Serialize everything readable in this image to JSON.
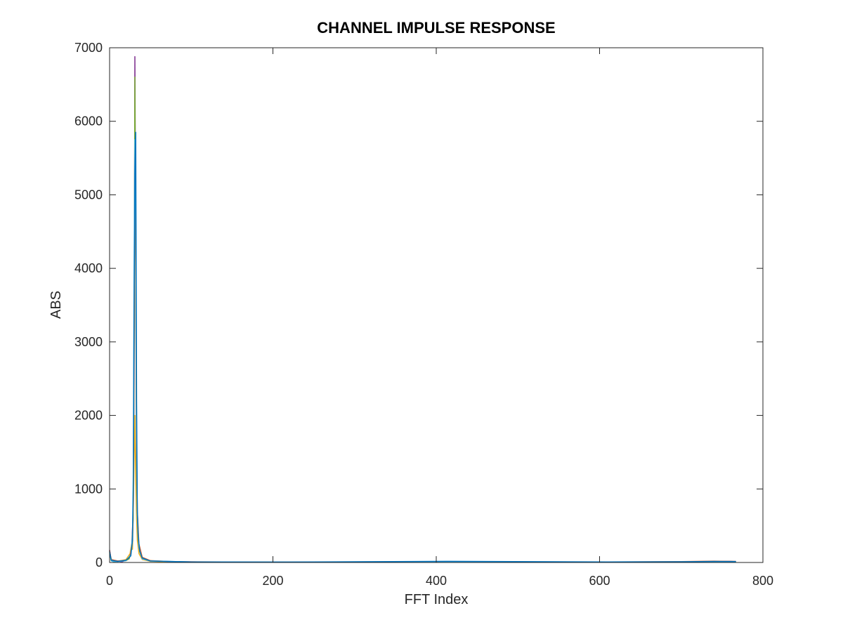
{
  "chart_data": {
    "type": "line",
    "title": "CHANNEL IMPULSE RESPONSE",
    "xlabel": "FFT Index",
    "ylabel": "ABS",
    "xlim": [
      0,
      800
    ],
    "ylim": [
      0,
      7000
    ],
    "xticks": [
      "0",
      "200",
      "400",
      "600",
      "800"
    ],
    "yticks": [
      "0",
      "1000",
      "2000",
      "3000",
      "4000",
      "5000",
      "6000",
      "7000"
    ],
    "grid": false,
    "legend": "none",
    "series": [
      {
        "color": "#7E2F8E",
        "points": [
          [
            0,
            170
          ],
          [
            2,
            30
          ],
          [
            5,
            10
          ],
          [
            10,
            20
          ],
          [
            15,
            10
          ],
          [
            20,
            30
          ],
          [
            24,
            60
          ],
          [
            27,
            200
          ],
          [
            29,
            700
          ],
          [
            30,
            2500
          ],
          [
            31,
            6880
          ],
          [
            32,
            4200
          ],
          [
            33,
            1300
          ],
          [
            34,
            500
          ],
          [
            36,
            200
          ],
          [
            40,
            60
          ],
          [
            50,
            20
          ],
          [
            60,
            15
          ],
          [
            80,
            10
          ],
          [
            120,
            6
          ],
          [
            200,
            4
          ],
          [
            300,
            3
          ],
          [
            416,
            8
          ],
          [
            500,
            3
          ],
          [
            610,
            5
          ],
          [
            700,
            8
          ],
          [
            740,
            12
          ],
          [
            760,
            15
          ],
          [
            767,
            10
          ]
        ]
      },
      {
        "color": "#77AC30",
        "points": [
          [
            0,
            140
          ],
          [
            2,
            25
          ],
          [
            5,
            12
          ],
          [
            10,
            15
          ],
          [
            20,
            25
          ],
          [
            24,
            50
          ],
          [
            27,
            180
          ],
          [
            29,
            600
          ],
          [
            30,
            2800
          ],
          [
            31,
            6600
          ],
          [
            32,
            3900
          ],
          [
            33,
            1200
          ],
          [
            34,
            450
          ],
          [
            36,
            180
          ],
          [
            40,
            50
          ],
          [
            50,
            18
          ],
          [
            80,
            8
          ],
          [
            200,
            4
          ],
          [
            300,
            2
          ],
          [
            416,
            6
          ],
          [
            600,
            4
          ],
          [
            700,
            7
          ],
          [
            767,
            9
          ]
        ]
      },
      {
        "color": "#EDB120",
        "points": [
          [
            0,
            120
          ],
          [
            3,
            20
          ],
          [
            10,
            15
          ],
          [
            20,
            40
          ],
          [
            25,
            120
          ],
          [
            27,
            250
          ],
          [
            28,
            180
          ],
          [
            29,
            700
          ],
          [
            30,
            1400
          ],
          [
            31,
            2000
          ],
          [
            32,
            1100
          ],
          [
            33,
            600
          ],
          [
            34,
            300
          ],
          [
            36,
            120
          ],
          [
            40,
            40
          ],
          [
            50,
            15
          ],
          [
            100,
            6
          ],
          [
            200,
            3
          ],
          [
            416,
            5
          ],
          [
            600,
            3
          ],
          [
            700,
            6
          ],
          [
            767,
            8
          ]
        ]
      },
      {
        "color": "#D95319",
        "points": [
          [
            0,
            160
          ],
          [
            2,
            40
          ],
          [
            10,
            20
          ],
          [
            20,
            30
          ],
          [
            25,
            80
          ],
          [
            28,
            300
          ],
          [
            29,
            900
          ],
          [
            30,
            3000
          ],
          [
            31,
            5500
          ],
          [
            32,
            4500
          ],
          [
            33,
            1500
          ],
          [
            34,
            700
          ],
          [
            36,
            250
          ],
          [
            40,
            70
          ],
          [
            50,
            25
          ],
          [
            80,
            10
          ],
          [
            200,
            5
          ],
          [
            416,
            10
          ],
          [
            600,
            5
          ],
          [
            700,
            12
          ],
          [
            740,
            18
          ],
          [
            767,
            14
          ]
        ]
      },
      {
        "color": "#4DBEEE",
        "points": [
          [
            0,
            100
          ],
          [
            3,
            15
          ],
          [
            10,
            12
          ],
          [
            20,
            25
          ],
          [
            26,
            100
          ],
          [
            28,
            350
          ],
          [
            29,
            1200
          ],
          [
            30,
            4000
          ],
          [
            31,
            5750
          ],
          [
            32,
            5000
          ],
          [
            33,
            1800
          ],
          [
            34,
            600
          ],
          [
            36,
            200
          ],
          [
            40,
            50
          ],
          [
            50,
            20
          ],
          [
            100,
            7
          ],
          [
            220,
            5
          ],
          [
            416,
            12
          ],
          [
            610,
            6
          ],
          [
            720,
            10
          ],
          [
            767,
            12
          ]
        ]
      },
      {
        "color": "#0072BD",
        "points": [
          [
            0,
            150
          ],
          [
            2,
            30
          ],
          [
            10,
            15
          ],
          [
            20,
            30
          ],
          [
            26,
            90
          ],
          [
            28,
            300
          ],
          [
            29,
            1000
          ],
          [
            30,
            3500
          ],
          [
            31,
            5300
          ],
          [
            32,
            5850
          ],
          [
            33,
            2200
          ],
          [
            34,
            700
          ],
          [
            35,
            350
          ],
          [
            37,
            150
          ],
          [
            40,
            60
          ],
          [
            50,
            20
          ],
          [
            100,
            8
          ],
          [
            220,
            6
          ],
          [
            416,
            15
          ],
          [
            610,
            8
          ],
          [
            700,
            10
          ],
          [
            740,
            14
          ],
          [
            767,
            13
          ]
        ]
      }
    ]
  }
}
